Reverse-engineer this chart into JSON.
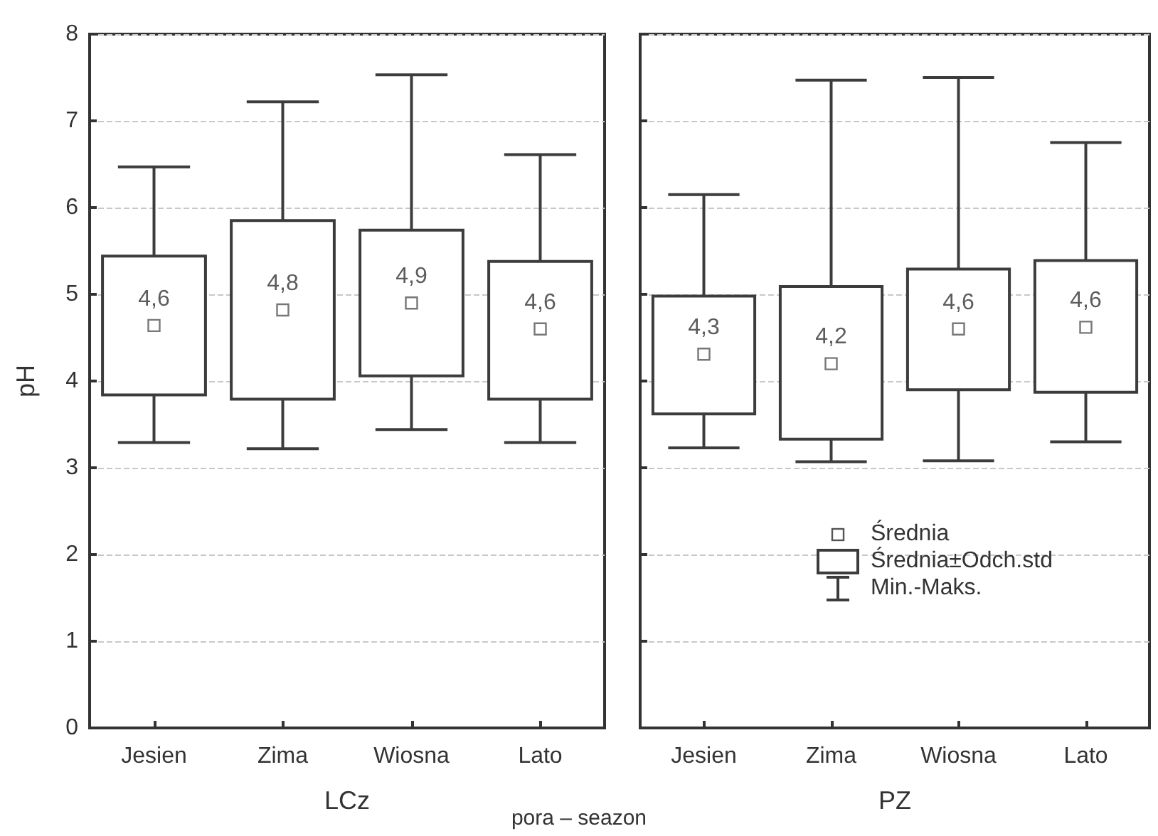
{
  "chart_data": [
    {
      "type": "box",
      "xlabel": "LCz",
      "ylabel": "pH",
      "categories": [
        "Jesien",
        "Zima",
        "Wiosna",
        "Lato"
      ],
      "color": "#3c3c3c",
      "ylim": [
        0,
        8
      ],
      "yticks": [
        0,
        1,
        2,
        3,
        4,
        5,
        6,
        7,
        8
      ],
      "grid": "y",
      "boxes": [
        {
          "low": 3.29,
          "q1": 3.84,
          "q3": 5.44,
          "high": 6.47,
          "mean": 4.64
        },
        {
          "low": 3.22,
          "q1": 3.79,
          "q3": 5.85,
          "high": 7.22,
          "mean": 4.82
        },
        {
          "low": 3.44,
          "q1": 4.06,
          "q3": 5.74,
          "high": 7.53,
          "mean": 4.9
        },
        {
          "low": 3.29,
          "q1": 3.79,
          "q3": 5.38,
          "high": 6.61,
          "mean": 4.6
        }
      ],
      "value_labels": [
        "4,6",
        "4,8",
        "4,9",
        "4,6"
      ],
      "annotations": [
        "pora – seazon"
      ]
    },
    {
      "type": "box",
      "xlabel": "PZ",
      "categories": [
        "Jesien",
        "Zima",
        "Wiosna",
        "Lato"
      ],
      "color": "#3c3c3c",
      "ylim": [
        0,
        8
      ],
      "yticks": [
        0,
        1,
        2,
        3,
        4,
        5,
        6,
        7,
        8
      ],
      "grid": "y",
      "tick_labels": "x",
      "boxes": [
        {
          "low": 3.23,
          "q1": 3.62,
          "q3": 4.98,
          "high": 6.15,
          "mean": 4.31
        },
        {
          "low": 3.07,
          "q1": 3.33,
          "q3": 5.09,
          "high": 7.47,
          "mean": 4.2
        },
        {
          "low": 3.08,
          "q1": 3.9,
          "q3": 5.29,
          "high": 7.5,
          "mean": 4.6
        },
        {
          "low": 3.3,
          "q1": 3.87,
          "q3": 5.39,
          "high": 6.75,
          "mean": 4.62
        }
      ],
      "value_labels": [
        "4,3",
        "4,2",
        "4,6",
        "4,6"
      ],
      "annotations": [
        "Średnia",
        "Średnia±Odch.std",
        "Min.-Maks."
      ]
    }
  ]
}
